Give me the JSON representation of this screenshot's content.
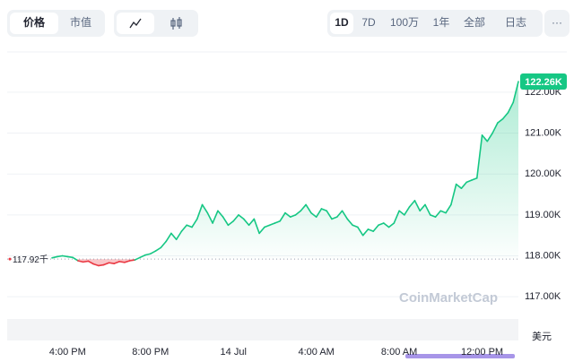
{
  "toolbar": {
    "view_tabs": [
      "价格",
      "市值"
    ],
    "range_tabs": [
      "1D",
      "7D",
      "100万",
      "1年",
      "全部",
      "日志"
    ],
    "more": "···"
  },
  "chart_data": {
    "type": "line",
    "categories": [
      null,
      null,
      null,
      "4:00 PM",
      null,
      null,
      null,
      null,
      null,
      null,
      null,
      null,
      null,
      null,
      null,
      null,
      null,
      null,
      null,
      "8:00 PM",
      null,
      null,
      null,
      null,
      null,
      null,
      null,
      null,
      null,
      null,
      null,
      null,
      null,
      null,
      null,
      "14 Jul",
      null,
      null,
      null,
      null,
      null,
      null,
      null,
      null,
      null,
      null,
      null,
      null,
      null,
      null,
      null,
      "4:00 AM",
      null,
      null,
      null,
      null,
      null,
      null,
      null,
      null,
      null,
      null,
      null,
      null,
      null,
      null,
      null,
      "8:00 AM",
      null,
      null,
      null,
      null,
      null,
      null,
      null,
      null,
      null,
      null,
      null,
      null,
      null,
      null,
      null,
      "12:00 PM",
      null,
      null,
      null,
      null,
      null,
      null,
      null
    ],
    "values": [
      117950,
      117980,
      118000,
      117980,
      117960,
      117880,
      117850,
      117870,
      117800,
      117760,
      117780,
      117830,
      117810,
      117860,
      117840,
      117880,
      117900,
      117960,
      118020,
      118050,
      118120,
      118200,
      118350,
      118550,
      118400,
      118600,
      118750,
      118700,
      118900,
      119250,
      119050,
      118800,
      119100,
      118950,
      118750,
      118850,
      119000,
      118900,
      118750,
      118900,
      118550,
      118700,
      118750,
      118800,
      118850,
      119050,
      118950,
      119000,
      119100,
      119250,
      119050,
      118950,
      119150,
      119100,
      118900,
      118950,
      119100,
      118900,
      118750,
      118700,
      118500,
      118650,
      118600,
      118750,
      118800,
      118700,
      118800,
      119100,
      119000,
      119200,
      119350,
      119100,
      119250,
      119000,
      118950,
      119100,
      119050,
      119250,
      119750,
      119650,
      119800,
      119850,
      119900,
      120950,
      120800,
      121000,
      121250,
      121350,
      121500,
      121750,
      122260
    ],
    "color": "#16c784",
    "down_color": "#ea3943",
    "baseline": {
      "value": 117920,
      "label": "117.92千"
    },
    "current": {
      "value": 122260,
      "label": "122.26K"
    },
    "ylim": [
      115930,
      122940
    ],
    "yticks": [
      {
        "value": 117000,
        "label": "117.00K"
      },
      {
        "value": 118000,
        "label": "118.00K"
      },
      {
        "value": 119000,
        "label": "119.00K"
      },
      {
        "value": 120000,
        "label": "120.00K"
      },
      {
        "value": 121000,
        "label": "121.00K"
      },
      {
        "value": 122000,
        "label": "122.00K"
      }
    ],
    "grid": true,
    "unit": "美元",
    "watermark": "CoinMarketCap"
  }
}
